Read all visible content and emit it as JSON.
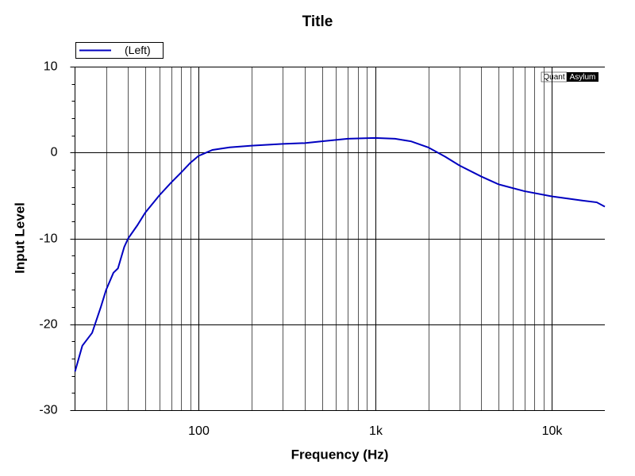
{
  "chart_data": {
    "type": "line",
    "title": "Title",
    "x_label": "Frequency (Hz)",
    "y_label": "Input Level",
    "watermark": {
      "left": "Quant",
      "right": "Asylum"
    },
    "log_x": true,
    "grid": true,
    "legend": "top-left",
    "x": [
      20,
      22,
      25,
      28,
      30,
      33,
      35,
      38,
      40,
      45,
      50,
      60,
      70,
      80,
      90,
      100,
      120,
      150,
      200,
      300,
      400,
      500,
      700,
      1000,
      1300,
      1600,
      2000,
      2500,
      3000,
      4000,
      5000,
      7000,
      10000,
      15000,
      18000,
      20000
    ],
    "series": [
      {
        "name": "(Left)",
        "color": "#0000c0",
        "values": [
          -25.5,
          -22.5,
          -21,
          -18,
          -16,
          -14,
          -13.5,
          -11,
          -10,
          -8.5,
          -7,
          -5,
          -3.5,
          -2.3,
          -1.2,
          -0.4,
          0.3,
          0.6,
          0.8,
          1.0,
          1.1,
          1.3,
          1.6,
          1.7,
          1.6,
          1.3,
          0.6,
          -0.5,
          -1.5,
          -2.8,
          -3.7,
          -4.5,
          -5.1,
          -5.6,
          -5.8,
          -6.3
        ]
      }
    ],
    "xlim": [
      20,
      20000
    ],
    "xticks": [
      100,
      {
        "value": 1000,
        "label": "1k"
      },
      {
        "value": 10000,
        "label": "10k"
      }
    ],
    "xminorticks": [
      30,
      40,
      50,
      60,
      70,
      80,
      90,
      200,
      300,
      400,
      500,
      600,
      700,
      800,
      900,
      2000,
      3000,
      4000,
      5000,
      6000,
      7000,
      8000,
      9000
    ],
    "ylim": [
      -30,
      10
    ],
    "yticks": [
      10,
      0,
      -10,
      -20,
      -30
    ],
    "yminorticks": [
      8,
      6,
      4,
      2,
      -2,
      -4,
      -6,
      -8,
      -12,
      -14,
      -16,
      -18,
      -22,
      -24,
      -26,
      -28
    ]
  }
}
